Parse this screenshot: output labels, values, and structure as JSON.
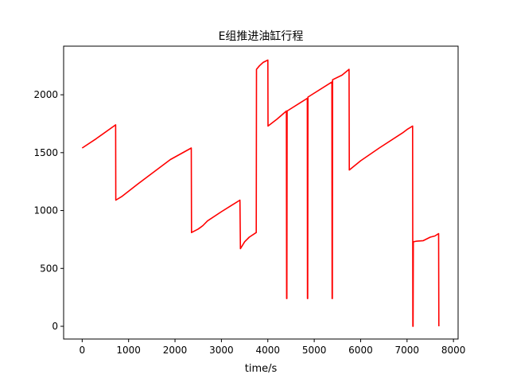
{
  "chart_data": {
    "type": "line",
    "title": "E组推进油缸行程",
    "xlabel": "time/s",
    "ylabel": "",
    "xlim": [
      -400,
      8100
    ],
    "ylim": [
      -110,
      2420
    ],
    "xticks": [
      0,
      1000,
      2000,
      3000,
      4000,
      5000,
      6000,
      7000,
      8000
    ],
    "yticks": [
      0,
      500,
      1000,
      1500,
      2000
    ],
    "grid": false,
    "legend": "none",
    "series": [
      {
        "color": "#ff0000",
        "x": [
          0,
          300,
          720,
          725,
          850,
          1200,
          1600,
          1900,
          2350,
          2355,
          2500,
          2600,
          2700,
          3000,
          3200,
          3400,
          3410,
          3500,
          3600,
          3750,
          3755,
          3820,
          3900,
          4000,
          4005,
          4200,
          4400,
          4405,
          4410,
          4415,
          4850,
          4855,
          4860,
          4865,
          5380,
          5385,
          5390,
          5395,
          5600,
          5750,
          5755,
          6000,
          6400,
          6900,
          7000,
          7120,
          7125,
          7130,
          7135,
          7200,
          7350,
          7500,
          7600,
          7680,
          7685
        ],
        "y": [
          1540,
          1620,
          1740,
          1090,
          1120,
          1230,
          1350,
          1440,
          1540,
          810,
          840,
          870,
          910,
          990,
          1040,
          1090,
          670,
          730,
          770,
          810,
          2220,
          2250,
          2280,
          2300,
          1730,
          1790,
          1860,
          240,
          240,
          1860,
          1970,
          240,
          240,
          1980,
          2110,
          240,
          240,
          2130,
          2170,
          2220,
          1350,
          1430,
          1540,
          1670,
          1700,
          1730,
          0,
          0,
          730,
          735,
          740,
          770,
          780,
          800,
          0
        ]
      }
    ]
  }
}
